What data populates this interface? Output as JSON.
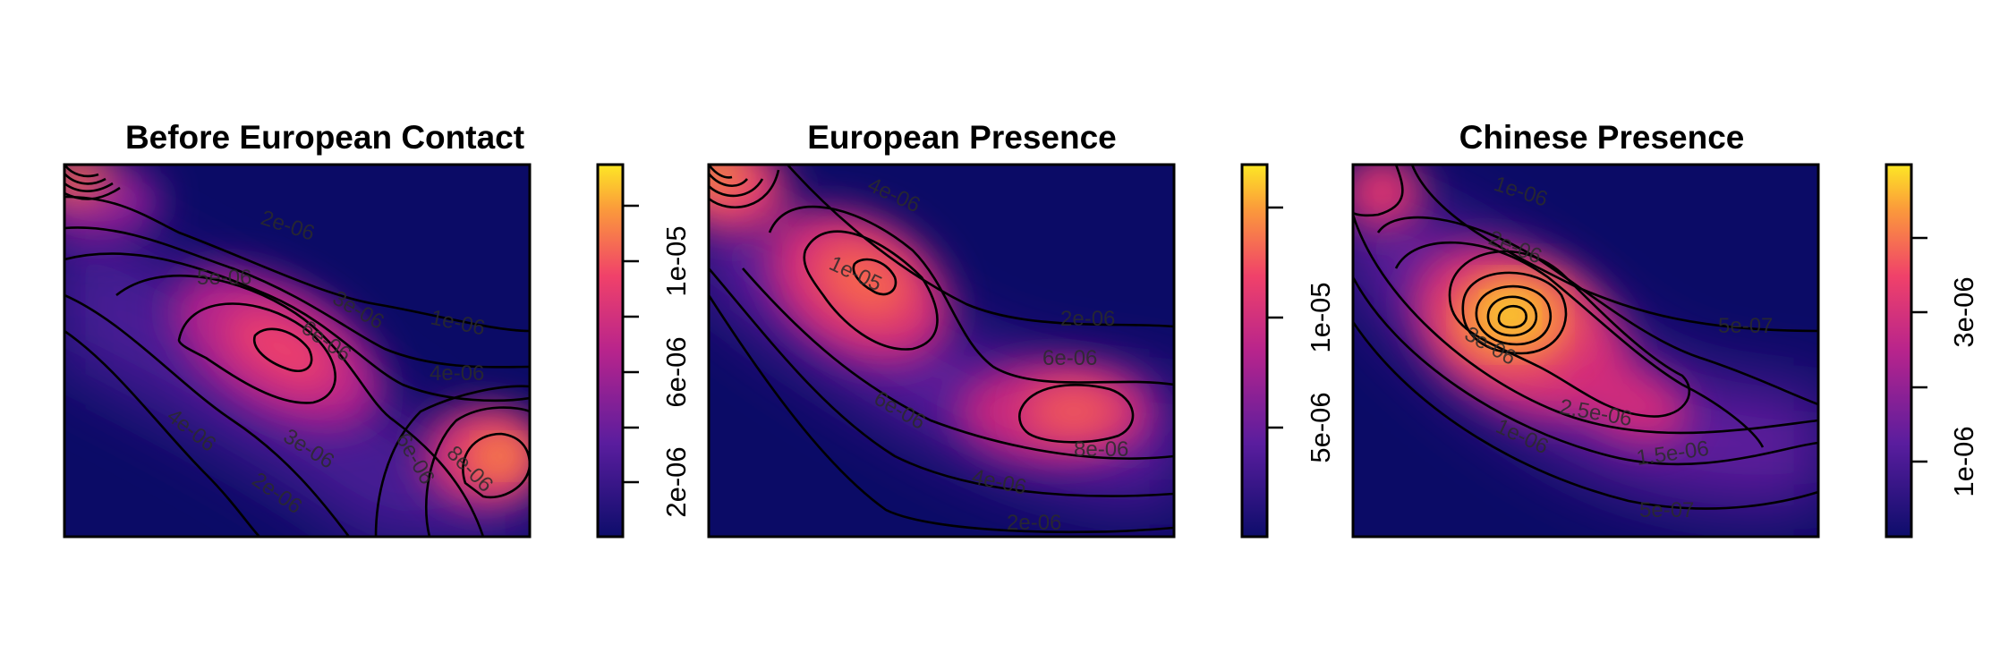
{
  "chart_data": [
    {
      "type": "heatmap",
      "title": "Before European Contact",
      "colorbar": {
        "ticks": [
          "2e-06",
          "6e-06",
          "1e-05"
        ]
      },
      "contour_labels": [
        "2e-06",
        "5e-06",
        "3e-06",
        "6e-06",
        "1e-06",
        "4e-06",
        "4e-06",
        "3e-06",
        "6e-06",
        "8e-06",
        "2e-06"
      ]
    },
    {
      "type": "heatmap",
      "title": "European Presence",
      "colorbar": {
        "ticks": [
          "5e-06",
          "1e-05"
        ]
      },
      "contour_labels": [
        "4e-06",
        "1e-05",
        "2e-06",
        "6e-06",
        "6e-06",
        "8e-06",
        "4e-06",
        "2e-06"
      ]
    },
    {
      "type": "heatmap",
      "title": "Chinese Presence",
      "colorbar": {
        "ticks": [
          "1e-06",
          "3e-06"
        ]
      },
      "contour_labels": [
        "1e-06",
        "2e-06",
        "5e-07",
        "3e-06",
        "2.5e-06",
        "1e-06",
        "1.5e-06",
        "5e-07"
      ]
    }
  ],
  "colors": {
    "low": "#0d0887",
    "mid": "#e0306b",
    "high": "#f8e71c"
  }
}
